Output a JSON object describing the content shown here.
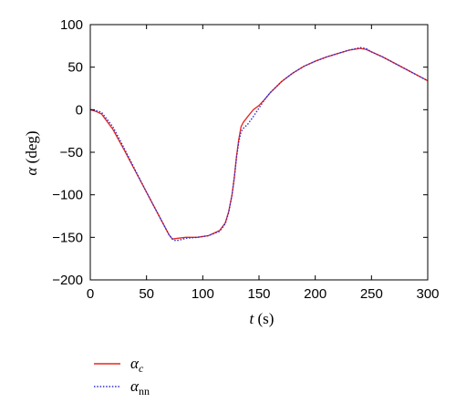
{
  "chart_data": {
    "type": "line",
    "xlabel_var": "t",
    "xlabel_unit": "(s)",
    "ylabel_var": "α",
    "ylabel_unit": "(deg)",
    "xlim": [
      0,
      300
    ],
    "ylim": [
      -200,
      100
    ],
    "xticks": [
      0,
      50,
      100,
      150,
      200,
      250,
      300
    ],
    "yticks": [
      100,
      50,
      0,
      -50,
      -100,
      -150,
      -200
    ],
    "grid": false,
    "legend_position": "bottom-left, below plot",
    "series": [
      {
        "name": "α_c",
        "name_base": "α",
        "name_sub": "c",
        "color": "#e8251f",
        "style": "solid",
        "x": [
          0,
          5,
          10,
          20,
          30,
          40,
          50,
          60,
          70,
          73,
          78,
          85,
          95,
          105,
          115,
          120,
          123,
          126,
          128,
          130,
          132,
          134,
          136,
          140,
          145,
          150,
          155,
          160,
          170,
          180,
          190,
          200,
          210,
          220,
          230,
          240,
          245,
          250,
          260,
          270,
          280,
          290,
          300
        ],
        "y": [
          0,
          -2,
          -5,
          -23,
          -47,
          -72,
          -97,
          -122,
          -147,
          -152,
          -151,
          -150,
          -150,
          -148,
          -142,
          -133,
          -120,
          -100,
          -80,
          -55,
          -35,
          -20,
          -15,
          -8,
          0,
          5,
          12,
          20,
          33,
          43,
          51,
          57,
          62,
          66,
          70,
          72,
          71,
          68,
          62,
          55,
          48,
          41,
          34
        ]
      },
      {
        "name": "α_nn",
        "name_base": "α",
        "name_sub": "nn",
        "color": "#2b2bd6",
        "style": "dotted",
        "x": [
          0,
          5,
          10,
          20,
          30,
          40,
          50,
          60,
          70,
          73,
          76,
          80,
          85,
          95,
          105,
          115,
          120,
          123,
          126,
          128,
          130,
          132,
          134,
          136,
          140,
          145,
          150,
          155,
          160,
          170,
          180,
          190,
          200,
          210,
          220,
          230,
          240,
          245,
          250,
          260,
          270,
          280,
          290,
          300
        ],
        "y": [
          0,
          -1,
          -3,
          -20,
          -45,
          -71,
          -97,
          -122,
          -147,
          -152,
          -154,
          -153,
          -151,
          -150,
          -148,
          -143,
          -134,
          -121,
          -100,
          -80,
          -57,
          -38,
          -26,
          -22,
          -17,
          -8,
          2,
          12,
          20,
          33,
          43,
          51,
          57,
          62,
          66,
          70,
          73,
          72,
          68,
          62,
          55,
          48,
          41,
          34
        ]
      }
    ]
  }
}
